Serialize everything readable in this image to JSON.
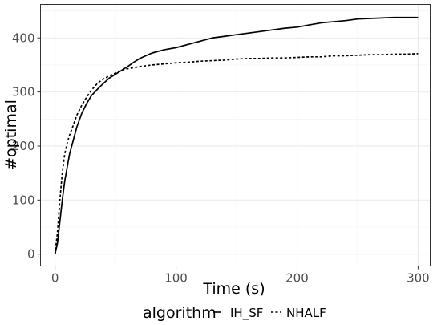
{
  "chart_data": {
    "type": "line",
    "xlabel": "Time (s)",
    "ylabel": "#optimal",
    "xlim": [
      -12,
      310
    ],
    "ylim": [
      -22,
      462
    ],
    "x_ticks": [
      0,
      100,
      200,
      300
    ],
    "y_ticks": [
      0,
      100,
      200,
      300,
      400
    ],
    "grid": true,
    "legend_position": "bottom",
    "legend_title": "algorithm",
    "series": [
      {
        "name": "IH_SF",
        "style": "solid",
        "x": [
          0,
          2,
          4,
          6,
          8,
          10,
          12,
          15,
          18,
          22,
          26,
          30,
          35,
          40,
          45,
          50,
          55,
          60,
          65,
          70,
          75,
          80,
          90,
          100,
          110,
          120,
          130,
          140,
          150,
          160,
          170,
          180,
          190,
          200,
          210,
          220,
          230,
          240,
          250,
          260,
          270,
          280,
          290,
          300
        ],
        "y": [
          0,
          20,
          60,
          100,
          135,
          160,
          185,
          210,
          235,
          260,
          278,
          293,
          305,
          316,
          326,
          333,
          340,
          347,
          355,
          362,
          367,
          372,
          378,
          382,
          388,
          394,
          400,
          403,
          406,
          409,
          412,
          415,
          418,
          420,
          424,
          428,
          430,
          432,
          435,
          436,
          437,
          438,
          438,
          438
        ]
      },
      {
        "name": "NHALF",
        "style": "dashed",
        "x": [
          0,
          2,
          4,
          6,
          8,
          10,
          12,
          15,
          18,
          22,
          26,
          30,
          35,
          40,
          45,
          50,
          55,
          60,
          70,
          80,
          90,
          100,
          110,
          120,
          130,
          140,
          150,
          160,
          170,
          180,
          190,
          200,
          210,
          220,
          230,
          240,
          250,
          260,
          270,
          280,
          290,
          300
        ],
        "y": [
          0,
          40,
          100,
          150,
          185,
          205,
          220,
          238,
          257,
          275,
          290,
          303,
          316,
          324,
          330,
          335,
          340,
          343,
          347,
          350,
          352,
          354,
          355,
          357,
          358,
          359,
          361,
          362,
          362,
          363,
          363,
          364,
          365,
          365,
          367,
          367,
          368,
          369,
          369,
          370,
          370,
          371
        ]
      }
    ]
  }
}
